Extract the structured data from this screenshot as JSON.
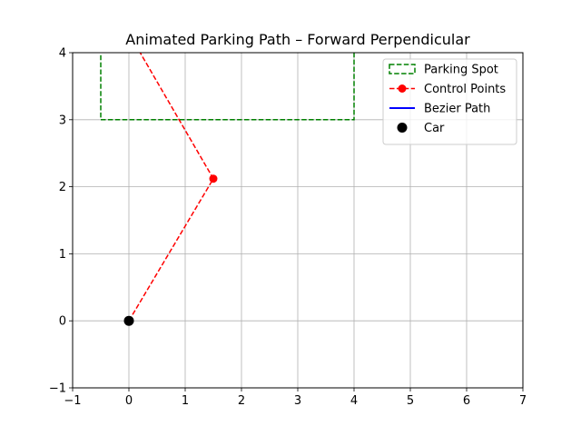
{
  "chart_data": {
    "type": "line",
    "title": "Animated Parking Path – Forward Perpendicular",
    "xlabel": "",
    "ylabel": "",
    "xlim": [
      -1,
      7
    ],
    "ylim": [
      -1,
      4
    ],
    "xticks": [
      -1,
      0,
      1,
      2,
      3,
      4,
      5,
      6,
      7
    ],
    "yticks": [
      -1,
      0,
      1,
      2,
      3,
      4
    ],
    "xtick_labels": [
      "−1",
      "0",
      "1",
      "2",
      "3",
      "4",
      "5",
      "6",
      "7"
    ],
    "ytick_labels": [
      "−1",
      "0",
      "1",
      "2",
      "3",
      "4"
    ],
    "grid": true,
    "legend_position": "top-right",
    "series": [
      {
        "name": "Parking Spot",
        "kind": "dashed-rectangle",
        "color": "#008000",
        "x": [
          -0.5,
          4,
          4,
          -0.5,
          -0.5
        ],
        "y": [
          3,
          3,
          5,
          5,
          3
        ]
      },
      {
        "name": "Control Points",
        "kind": "dashed-line-markers",
        "color": "#ff0000",
        "x": [
          0,
          1.5,
          0.2
        ],
        "y": [
          0,
          2.12,
          4.0
        ],
        "marker_x": [
          1.5
        ],
        "marker_y": [
          2.12
        ]
      },
      {
        "name": "Bezier Path",
        "kind": "line",
        "color": "#0000ff",
        "x": [],
        "y": []
      },
      {
        "name": "Car",
        "kind": "marker",
        "color": "#000000",
        "x": [
          0
        ],
        "y": [
          0
        ]
      }
    ]
  }
}
